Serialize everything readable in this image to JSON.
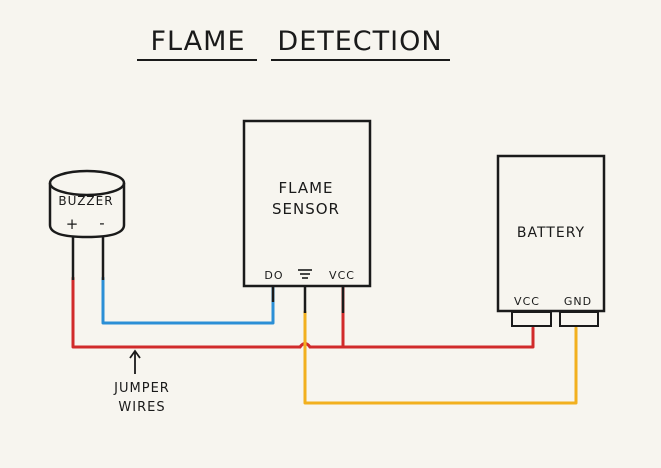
{
  "title": {
    "word1": "FLAME",
    "word2": "DETECTION"
  },
  "buzzer": {
    "label": "BUZZER",
    "plus": "+",
    "minus": "-"
  },
  "sensor": {
    "line1": "FLAME",
    "line2": "SENSOR",
    "pin_do": "DO",
    "pin_vcc": "VCC",
    "ground_symbol": "ground-symbol"
  },
  "battery": {
    "label": "BATTERY",
    "pin_vcc": "VCC",
    "pin_gnd": "GND"
  },
  "annotation": {
    "line1": "JUMPER",
    "line2": "WIRES"
  },
  "colors": {
    "red_wire": "#d12b2b",
    "blue_wire": "#2b8fd6",
    "yellow_wire": "#f2b01e",
    "ink": "#1a1a1a",
    "paper": "#f7f5ef"
  }
}
